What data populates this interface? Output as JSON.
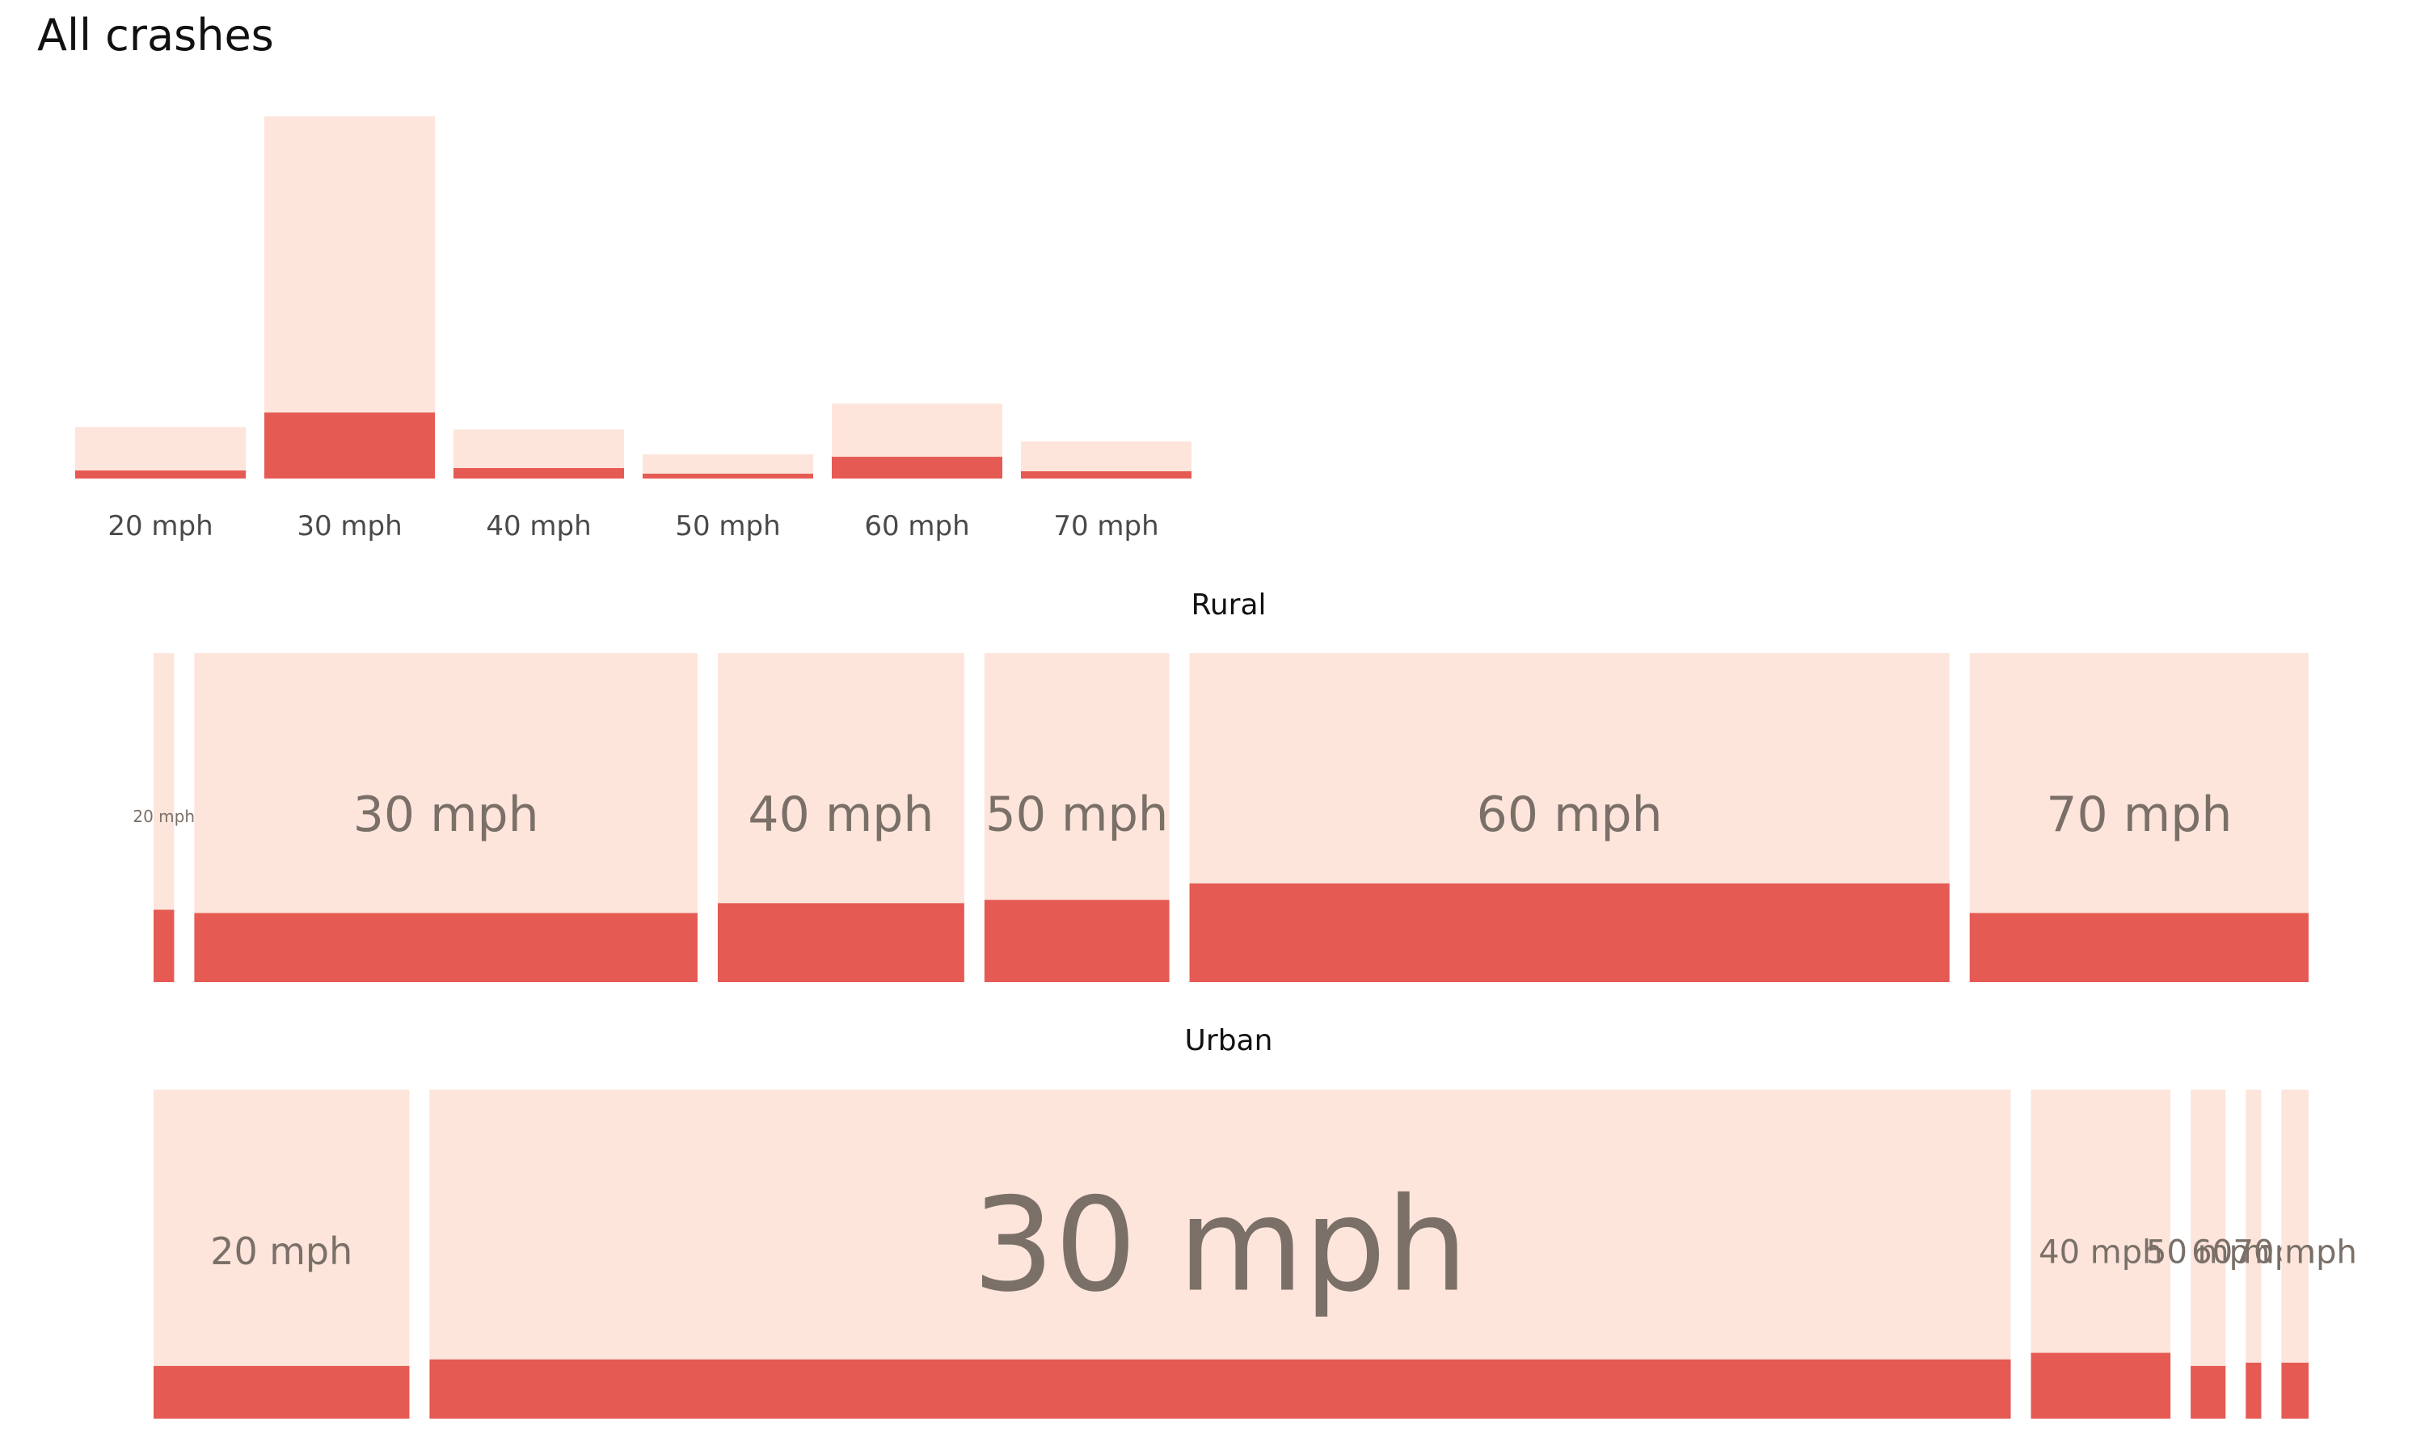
{
  "chart_data": {
    "type": "bar",
    "title": "All crashes",
    "categories": [
      "20 mph",
      "30 mph",
      "40 mph",
      "50 mph",
      "60 mph",
      "70 mph"
    ],
    "colors": {
      "total": "#fde5db",
      "subset": "#e55a53",
      "label": "#7a7068"
    },
    "all": {
      "type": "bar",
      "series": [
        {
          "values": [
            64,
            450,
            61,
            30,
            93,
            46
          ]
        },
        {
          "values": [
            10,
            82,
            13,
            6,
            27,
            9
          ]
        }
      ]
    },
    "facets": [
      {
        "title": "Rural",
        "type": "mosaic",
        "widths": [
          2,
          49,
          24,
          18,
          74,
          33
        ],
        "subset_share": [
          0.22,
          0.21,
          0.24,
          0.25,
          0.3,
          0.21
        ]
      },
      {
        "title": "Urban",
        "type": "mosaic",
        "widths": [
          33,
          204,
          18,
          4.5,
          2,
          3.5
        ],
        "subset_share": [
          0.16,
          0.18,
          0.2,
          0.16,
          0.17,
          0.17
        ]
      }
    ]
  }
}
